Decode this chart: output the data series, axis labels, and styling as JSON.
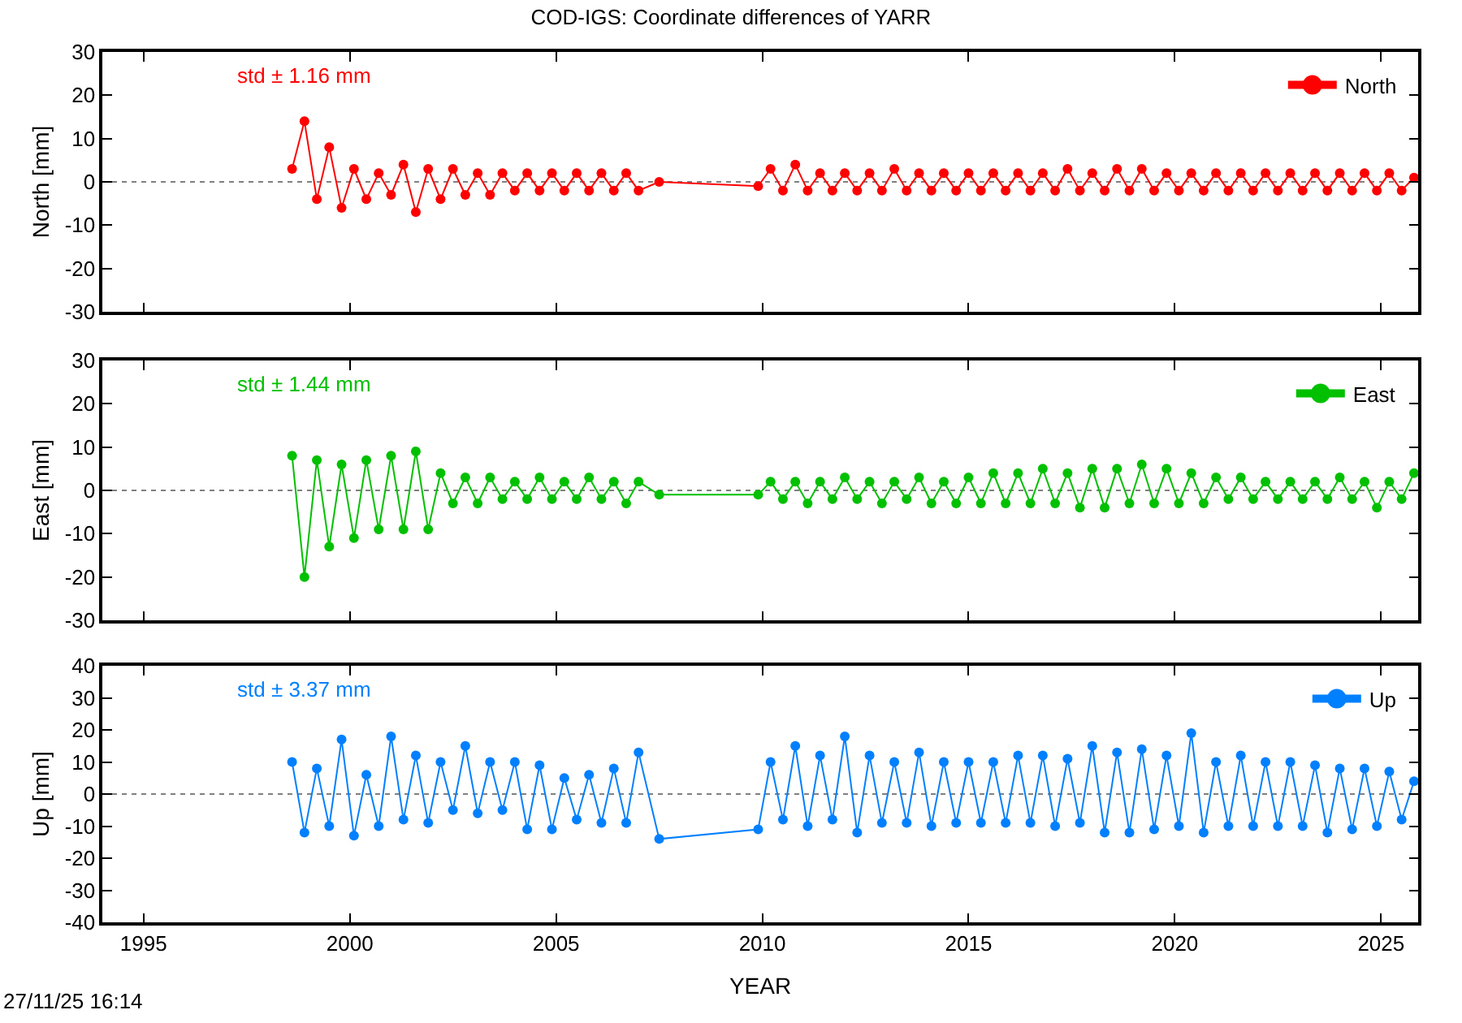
{
  "chart_data": [
    {
      "type": "line",
      "title": "COD-IGS: Coordinate differences of YARR",
      "ylabel": "North [mm]",
      "annotations": [
        "std ± 1.16 mm"
      ],
      "x": [
        1998.6,
        1998.9,
        1999.2,
        1999.5,
        1999.8,
        2000.1,
        2000.4,
        2000.7,
        2001.0,
        2001.3,
        2001.6,
        2001.9,
        2002.2,
        2002.5,
        2002.8,
        2003.1,
        2003.4,
        2003.7,
        2004.0,
        2004.3,
        2004.6,
        2004.9,
        2005.2,
        2005.5,
        2005.8,
        2006.1,
        2006.4,
        2006.7,
        2007.0,
        2007.5,
        2009.9,
        2010.2,
        2010.5,
        2010.8,
        2011.1,
        2011.4,
        2011.7,
        2012.0,
        2012.3,
        2012.6,
        2012.9,
        2013.2,
        2013.5,
        2013.8,
        2014.1,
        2014.4,
        2014.7,
        2015.0,
        2015.3,
        2015.6,
        2015.9,
        2016.2,
        2016.5,
        2016.8,
        2017.1,
        2017.4,
        2017.7,
        2018.0,
        2018.3,
        2018.6,
        2018.9,
        2019.2,
        2019.5,
        2019.8,
        2020.1,
        2020.4,
        2020.7,
        2021.0,
        2021.3,
        2021.6,
        2021.9,
        2022.2,
        2022.5,
        2022.8,
        2023.1,
        2023.4,
        2023.7,
        2024.0,
        2024.3,
        2024.6,
        2024.9,
        2025.2,
        2025.5,
        2025.8
      ],
      "series": [
        {
          "name": "North",
          "color": "#ff0000",
          "values": [
            3,
            14,
            -4,
            8,
            -6,
            3,
            -4,
            2,
            -3,
            4,
            -7,
            3,
            -4,
            3,
            -3,
            2,
            -3,
            2,
            -2,
            2,
            -2,
            2,
            -2,
            2,
            -2,
            2,
            -2,
            2,
            -2,
            0,
            -1,
            3,
            -2,
            4,
            -2,
            2,
            -2,
            2,
            -2,
            2,
            -2,
            3,
            -2,
            2,
            -2,
            2,
            -2,
            2,
            -2,
            2,
            -2,
            2,
            -2,
            2,
            -2,
            3,
            -2,
            2,
            -2,
            3,
            -2,
            3,
            -2,
            2,
            -2,
            2,
            -2,
            2,
            -2,
            2,
            -2,
            2,
            -2,
            2,
            -2,
            2,
            -2,
            2,
            -2,
            2,
            -2,
            2,
            -2,
            1
          ]
        }
      ],
      "xlim": [
        1994,
        2025.9
      ],
      "xticks": [
        1995,
        2000,
        2005,
        2010,
        2015,
        2020,
        2025
      ],
      "ylim": [
        -30,
        30
      ],
      "yticks": [
        -30,
        -20,
        -10,
        0,
        10,
        20,
        30
      ],
      "tick_labels": "y",
      "legend": "top right",
      "marker": "circle",
      "grid": false,
      "ref_lines": [
        {
          "axis": "y",
          "value": 0,
          "color": "#808080",
          "line_style": "dotted"
        }
      ]
    },
    {
      "type": "line",
      "ylabel": "East [mm]",
      "annotations": [
        "std ± 1.44 mm"
      ],
      "x": [
        1998.6,
        1998.9,
        1999.2,
        1999.5,
        1999.8,
        2000.1,
        2000.4,
        2000.7,
        2001.0,
        2001.3,
        2001.6,
        2001.9,
        2002.2,
        2002.5,
        2002.8,
        2003.1,
        2003.4,
        2003.7,
        2004.0,
        2004.3,
        2004.6,
        2004.9,
        2005.2,
        2005.5,
        2005.8,
        2006.1,
        2006.4,
        2006.7,
        2007.0,
        2007.5,
        2009.9,
        2010.2,
        2010.5,
        2010.8,
        2011.1,
        2011.4,
        2011.7,
        2012.0,
        2012.3,
        2012.6,
        2012.9,
        2013.2,
        2013.5,
        2013.8,
        2014.1,
        2014.4,
        2014.7,
        2015.0,
        2015.3,
        2015.6,
        2015.9,
        2016.2,
        2016.5,
        2016.8,
        2017.1,
        2017.4,
        2017.7,
        2018.0,
        2018.3,
        2018.6,
        2018.9,
        2019.2,
        2019.5,
        2019.8,
        2020.1,
        2020.4,
        2020.7,
        2021.0,
        2021.3,
        2021.6,
        2021.9,
        2022.2,
        2022.5,
        2022.8,
        2023.1,
        2023.4,
        2023.7,
        2024.0,
        2024.3,
        2024.6,
        2024.9,
        2025.2,
        2025.5,
        2025.8
      ],
      "series": [
        {
          "name": "East",
          "color": "#00c000",
          "values": [
            8,
            -20,
            7,
            -13,
            6,
            -11,
            7,
            -9,
            8,
            -9,
            9,
            -9,
            4,
            -3,
            3,
            -3,
            3,
            -2,
            2,
            -2,
            3,
            -2,
            2,
            -2,
            3,
            -2,
            2,
            -3,
            2,
            -1,
            -1,
            2,
            -2,
            2,
            -3,
            2,
            -2,
            3,
            -2,
            2,
            -3,
            2,
            -2,
            3,
            -3,
            2,
            -3,
            3,
            -3,
            4,
            -3,
            4,
            -3,
            5,
            -3,
            4,
            -4,
            5,
            -4,
            5,
            -3,
            6,
            -3,
            5,
            -3,
            4,
            -3,
            3,
            -2,
            3,
            -2,
            2,
            -2,
            2,
            -2,
            2,
            -2,
            3,
            -2,
            2,
            -4,
            2,
            -2,
            4
          ]
        }
      ],
      "xlim": [
        1994,
        2025.9
      ],
      "xticks": [
        1995,
        2000,
        2005,
        2010,
        2015,
        2020,
        2025
      ],
      "ylim": [
        -30,
        30
      ],
      "yticks": [
        -30,
        -20,
        -10,
        0,
        10,
        20,
        30
      ],
      "tick_labels": "y",
      "legend": "top right",
      "marker": "circle",
      "grid": false,
      "ref_lines": [
        {
          "axis": "y",
          "value": 0,
          "color": "#808080",
          "line_style": "dotted"
        }
      ]
    },
    {
      "type": "line",
      "ylabel": "Up [mm]",
      "xlabel": "YEAR",
      "annotations": [
        "std ± 3.37 mm",
        "27/11/25 16:14"
      ],
      "x": [
        1998.6,
        1998.9,
        1999.2,
        1999.5,
        1999.8,
        2000.1,
        2000.4,
        2000.7,
        2001.0,
        2001.3,
        2001.6,
        2001.9,
        2002.2,
        2002.5,
        2002.8,
        2003.1,
        2003.4,
        2003.7,
        2004.0,
        2004.3,
        2004.6,
        2004.9,
        2005.2,
        2005.5,
        2005.8,
        2006.1,
        2006.4,
        2006.7,
        2007.0,
        2007.5,
        2009.9,
        2010.2,
        2010.5,
        2010.8,
        2011.1,
        2011.4,
        2011.7,
        2012.0,
        2012.3,
        2012.6,
        2012.9,
        2013.2,
        2013.5,
        2013.8,
        2014.1,
        2014.4,
        2014.7,
        2015.0,
        2015.3,
        2015.6,
        2015.9,
        2016.2,
        2016.5,
        2016.8,
        2017.1,
        2017.4,
        2017.7,
        2018.0,
        2018.3,
        2018.6,
        2018.9,
        2019.2,
        2019.5,
        2019.8,
        2020.1,
        2020.4,
        2020.7,
        2021.0,
        2021.3,
        2021.6,
        2021.9,
        2022.2,
        2022.5,
        2022.8,
        2023.1,
        2023.4,
        2023.7,
        2024.0,
        2024.3,
        2024.6,
        2024.9,
        2025.2,
        2025.5,
        2025.8
      ],
      "series": [
        {
          "name": "Up",
          "color": "#0080ff",
          "values": [
            10,
            -12,
            8,
            -10,
            17,
            -13,
            6,
            -10,
            18,
            -8,
            12,
            -9,
            10,
            -5,
            15,
            -6,
            10,
            -5,
            10,
            -11,
            9,
            -11,
            5,
            -8,
            6,
            -9,
            8,
            -9,
            13,
            -14,
            -11,
            10,
            -8,
            15,
            -10,
            12,
            -8,
            18,
            -12,
            12,
            -9,
            10,
            -9,
            13,
            -10,
            10,
            -9,
            10,
            -9,
            10,
            -9,
            12,
            -9,
            12,
            -10,
            11,
            -9,
            15,
            -12,
            13,
            -12,
            14,
            -11,
            12,
            -10,
            19,
            -12,
            10,
            -10,
            12,
            -10,
            10,
            -10,
            10,
            -10,
            9,
            -12,
            8,
            -11,
            8,
            -10,
            7,
            -8,
            4
          ]
        }
      ],
      "xlim": [
        1994,
        2025.9
      ],
      "xticks": [
        1995,
        2000,
        2005,
        2010,
        2015,
        2020,
        2025
      ],
      "ylim": [
        -40,
        40
      ],
      "yticks": [
        -40,
        -30,
        -20,
        -10,
        0,
        10,
        20,
        30,
        40
      ],
      "legend": "top right",
      "marker": "circle",
      "grid": false,
      "ref_lines": [
        {
          "axis": "y",
          "value": 0,
          "color": "#808080",
          "line_style": "dotted"
        }
      ]
    }
  ]
}
